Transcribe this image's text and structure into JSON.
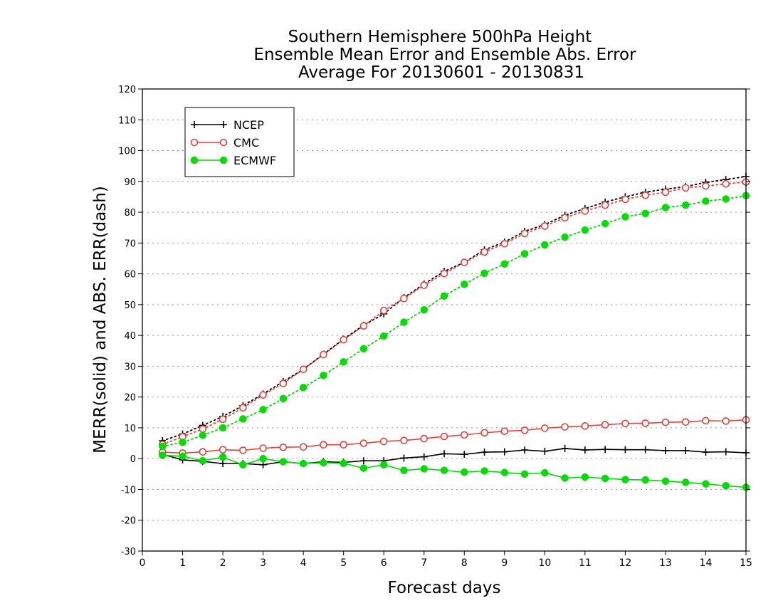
{
  "chart_data": {
    "type": "line",
    "title": [
      "Southern Hemisphere 500hPa Height",
      "Ensemble Mean Error and Ensemble Abs. Error",
      "Average For 20130601 - 20130831"
    ],
    "xlabel": "Forecast days",
    "ylabel": "MERR(solid) and ABS. ERR(dash)",
    "xlim": [
      0,
      15
    ],
    "ylim": [
      -30,
      120
    ],
    "xticks": [
      0,
      1,
      2,
      3,
      4,
      5,
      6,
      7,
      8,
      9,
      10,
      11,
      12,
      13,
      14,
      15
    ],
    "yticks": [
      -30,
      -20,
      -10,
      0,
      10,
      20,
      30,
      40,
      50,
      60,
      70,
      80,
      90,
      100,
      110,
      120
    ],
    "grid": true,
    "legend_position": "top-left",
    "x": [
      0.5,
      1,
      1.5,
      2,
      2.5,
      3,
      3.5,
      4,
      4.5,
      5,
      5.5,
      6,
      6.5,
      7,
      7.5,
      8,
      8.5,
      9,
      9.5,
      10,
      10.5,
      11,
      11.5,
      12,
      12.5,
      13,
      13.5,
      14,
      14.5,
      15
    ],
    "series": [
      {
        "name": "NCEP",
        "color": "#000000",
        "marker": "plus",
        "abs_error": [
          5.8,
          8.0,
          10.8,
          13.7,
          17.2,
          21.0,
          25.0,
          29.0,
          33.9,
          38.8,
          43.3,
          47.0,
          52.3,
          56.7,
          60.8,
          63.7,
          67.8,
          70.3,
          73.8,
          76.0,
          79.0,
          81.2,
          83.3,
          85.0,
          86.5,
          87.5,
          88.3,
          89.7,
          90.6,
          91.6
        ],
        "mean_error": [
          1.4,
          -0.4,
          -0.9,
          -1.6,
          -1.6,
          -2.0,
          -1.0,
          -1.6,
          -1.0,
          -1.2,
          -0.7,
          -0.7,
          0.2,
          0.6,
          1.6,
          1.4,
          2.1,
          2.2,
          2.8,
          2.4,
          3.3,
          2.8,
          3.0,
          2.9,
          2.9,
          2.6,
          2.6,
          2.1,
          2.2,
          1.9
        ]
      },
      {
        "name": "CMC",
        "color": "#e8403a",
        "marker": "open-circle",
        "abs_error": [
          4.6,
          7.1,
          9.6,
          12.8,
          16.5,
          20.7,
          24.4,
          29.0,
          33.8,
          38.6,
          43.1,
          48.1,
          52.0,
          56.3,
          60.1,
          63.7,
          67.1,
          69.8,
          73.1,
          75.5,
          78.2,
          80.4,
          82.3,
          84.2,
          85.5,
          86.5,
          87.9,
          88.5,
          89.2,
          89.8
        ],
        "mean_error": [
          2.1,
          1.8,
          2.2,
          2.9,
          2.7,
          3.4,
          3.7,
          3.8,
          4.5,
          4.5,
          5.0,
          5.6,
          5.9,
          6.5,
          7.2,
          7.7,
          8.4,
          8.9,
          9.2,
          9.9,
          10.3,
          10.6,
          11.0,
          11.4,
          11.5,
          11.8,
          11.9,
          12.3,
          12.2,
          12.6
        ]
      },
      {
        "name": "ECMWF",
        "color": "#00dd00",
        "marker": "filled-circle",
        "abs_error": [
          4.0,
          5.3,
          7.6,
          10.0,
          12.9,
          15.9,
          19.5,
          23.1,
          27.0,
          31.4,
          35.7,
          39.8,
          44.3,
          48.3,
          52.8,
          56.6,
          60.2,
          63.2,
          66.5,
          69.4,
          71.9,
          74.2,
          76.3,
          78.5,
          79.6,
          81.5,
          82.3,
          83.6,
          84.3,
          85.4
        ],
        "mean_error": [
          1.1,
          0.8,
          -0.7,
          0.5,
          -2.0,
          0.0,
          -1.0,
          -1.6,
          -1.3,
          -1.5,
          -3.1,
          -2.0,
          -3.8,
          -3.3,
          -3.8,
          -4.4,
          -4.0,
          -4.5,
          -5.0,
          -4.6,
          -6.3,
          -6.0,
          -6.4,
          -6.8,
          -6.9,
          -7.3,
          -7.7,
          -8.2,
          -8.8,
          -9.3
        ]
      }
    ]
  }
}
